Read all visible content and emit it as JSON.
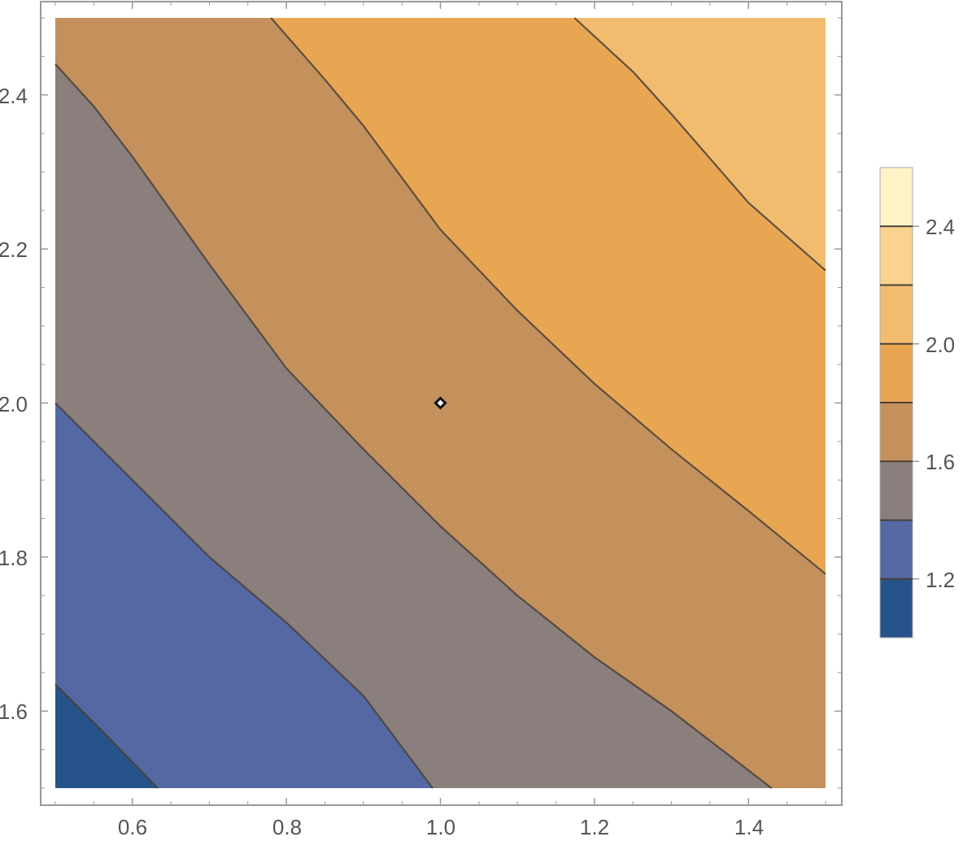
{
  "chart_data": {
    "type": "contour",
    "title": "",
    "xlabel": "",
    "ylabel": "",
    "xlim": [
      0.5,
      1.5
    ],
    "ylim": [
      1.5,
      2.5
    ],
    "x_ticks": [
      "0.6",
      "0.8",
      "1.0",
      "1.2",
      "1.4"
    ],
    "y_ticks": [
      "1.6",
      "1.8",
      "2.0",
      "2.2",
      "2.4"
    ],
    "contour_levels": [
      1.2,
      1.4,
      1.6,
      1.8,
      2.0,
      2.2,
      2.4
    ],
    "contour_lines": [
      {
        "level": 1.2,
        "points": [
          [
            0.5,
            1.635
          ],
          [
            0.565,
            1.57
          ],
          [
            0.633,
            1.5
          ]
        ]
      },
      {
        "level": 1.4,
        "points": [
          [
            0.5,
            2.0
          ],
          [
            0.55,
            1.95
          ],
          [
            0.6,
            1.9
          ],
          [
            0.7,
            1.8
          ],
          [
            0.8,
            1.715
          ],
          [
            0.9,
            1.62
          ],
          [
            0.99,
            1.5
          ]
        ]
      },
      {
        "level": 1.6,
        "points": [
          [
            0.5,
            2.44
          ],
          [
            0.55,
            2.385
          ],
          [
            0.6,
            2.32
          ],
          [
            0.7,
            2.18
          ],
          [
            0.8,
            2.045
          ],
          [
            0.9,
            1.94
          ],
          [
            1.0,
            1.84
          ],
          [
            1.1,
            1.75
          ],
          [
            1.2,
            1.67
          ],
          [
            1.3,
            1.6
          ],
          [
            1.43,
            1.5
          ]
        ]
      },
      {
        "level": 1.8,
        "points": [
          [
            0.78,
            2.5
          ],
          [
            0.85,
            2.42
          ],
          [
            0.9,
            2.36
          ],
          [
            1.0,
            2.225
          ],
          [
            1.1,
            2.12
          ],
          [
            1.2,
            2.025
          ],
          [
            1.3,
            1.94
          ],
          [
            1.4,
            1.86
          ],
          [
            1.5,
            1.778
          ]
        ]
      },
      {
        "level": 2.0,
        "points": [
          [
            1.174,
            2.5
          ],
          [
            1.25,
            2.43
          ],
          [
            1.3,
            2.375
          ],
          [
            1.4,
            2.26
          ],
          [
            1.5,
            2.172
          ]
        ]
      }
    ],
    "bands": [
      {
        "range": [
          1.0,
          1.2
        ],
        "color": "#26538a"
      },
      {
        "range": [
          1.2,
          1.4
        ],
        "color": "#5469a3"
      },
      {
        "range": [
          1.4,
          1.6
        ],
        "color": "#8a7f7c"
      },
      {
        "range": [
          1.6,
          1.8
        ],
        "color": "#c4915c"
      },
      {
        "range": [
          1.8,
          2.0
        ],
        "color": "#e9a652"
      },
      {
        "range": [
          2.0,
          2.2
        ],
        "color": "#f2bc6f"
      },
      {
        "range": [
          2.2,
          2.4
        ],
        "color": "#fad38e"
      },
      {
        "range": [
          2.4,
          2.6
        ],
        "color": "#fff3c8"
      }
    ],
    "legend": {
      "type": "colorbar",
      "placement": "right",
      "range": [
        1.0,
        2.6
      ],
      "ticks": [
        "1.2",
        "1.6",
        "2.0",
        "2.4"
      ]
    },
    "marker": {
      "x": 1.0,
      "y": 2.0,
      "shape": "diamond"
    }
  },
  "colors": {
    "line": "#4a4038",
    "frame": "#999999",
    "tick_text": "#555555"
  }
}
